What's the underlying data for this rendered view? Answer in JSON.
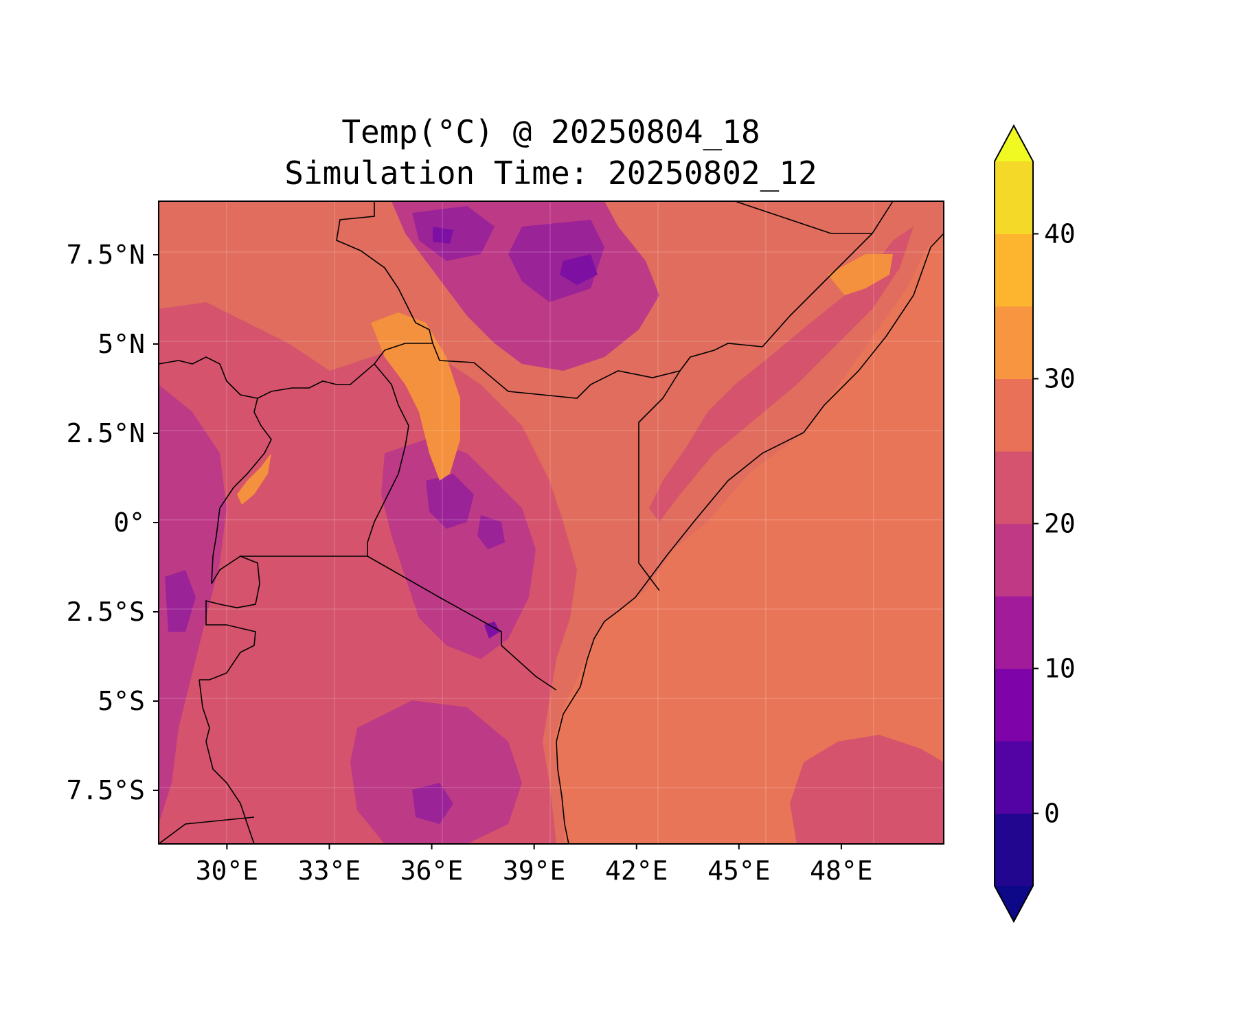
{
  "figure": {
    "title_line1": "Temp(°C) @ 20250804_18",
    "title_line2": "Simulation Time: 20250802_12"
  },
  "map": {
    "variable": "Temp(°C)",
    "lon_range": [
      28,
      51
    ],
    "lat_range": [
      -9,
      9
    ],
    "x_ticks": [
      {
        "value": 30,
        "label": "30°E"
      },
      {
        "value": 33,
        "label": "33°E"
      },
      {
        "value": 36,
        "label": "36°E"
      },
      {
        "value": 39,
        "label": "39°E"
      },
      {
        "value": 42,
        "label": "42°E"
      },
      {
        "value": 45,
        "label": "45°E"
      },
      {
        "value": 48,
        "label": "48°E"
      }
    ],
    "y_ticks": [
      {
        "value": 7.5,
        "label": "7.5°N"
      },
      {
        "value": 5,
        "label": "5°N"
      },
      {
        "value": 2.5,
        "label": "2.5°N"
      },
      {
        "value": 0,
        "label": "0°"
      },
      {
        "value": -2.5,
        "label": "2.5°S"
      },
      {
        "value": -5,
        "label": "5°S"
      },
      {
        "value": -7.5,
        "label": "7.5°S"
      }
    ],
    "colors": {
      "ocean": "#e97558",
      "land_warm": "#e06d5d",
      "land_mild": "#d5536c",
      "highland": "#bd3a86",
      "highland_cold": "#9b2398",
      "peak": "#7e0fa3",
      "hot_lowland": "#f4913e",
      "border": "#000000"
    }
  },
  "colorbar": {
    "min": -5,
    "max": 45,
    "extend": "both",
    "levels": [
      {
        "from": -5,
        "to": 0,
        "color": "#220690"
      },
      {
        "from": 0,
        "to": 5,
        "color": "#5302a3"
      },
      {
        "from": 5,
        "to": 10,
        "color": "#7e03a8"
      },
      {
        "from": 10,
        "to": 15,
        "color": "#a11b9b"
      },
      {
        "from": 15,
        "to": 20,
        "color": "#bf3984"
      },
      {
        "from": 20,
        "to": 25,
        "color": "#d5536f"
      },
      {
        "from": 25,
        "to": 30,
        "color": "#e97158"
      },
      {
        "from": 30,
        "to": 35,
        "color": "#f89540"
      },
      {
        "from": 35,
        "to": 40,
        "color": "#fdb42f"
      },
      {
        "from": 40,
        "to": 45,
        "color": "#f5d928"
      }
    ],
    "under_color": "#0d0887",
    "over_color": "#f0f921",
    "ticks": [
      {
        "value": 0,
        "label": "0"
      },
      {
        "value": 10,
        "label": "10"
      },
      {
        "value": 20,
        "label": "20"
      },
      {
        "value": 30,
        "label": "30"
      },
      {
        "value": 40,
        "label": "40"
      }
    ]
  }
}
